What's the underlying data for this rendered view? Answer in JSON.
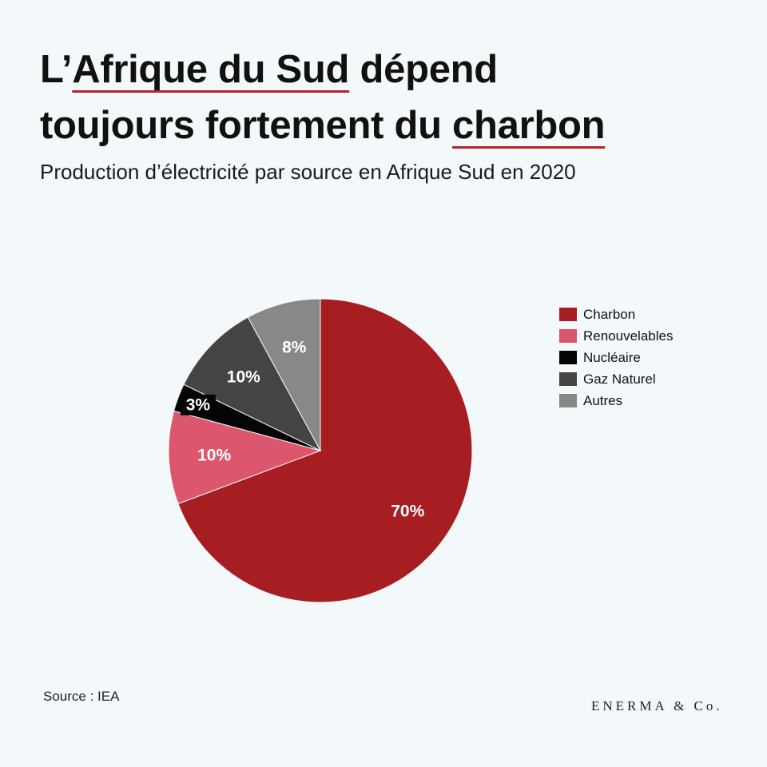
{
  "title": {
    "part1": "L’",
    "part2": "Afrique du Sud",
    "part3": " dépend",
    "part4": "toujours fortement du ",
    "part5": "charbon"
  },
  "subtitle": "Production d’électricité par source en Afrique Sud en 2020",
  "source": "Source : IEA",
  "brand": "ENERMA & Co.",
  "chart_data": {
    "type": "pie",
    "title": "L’Afrique du Sud dépend toujours fortement du charbon",
    "subtitle": "Production d’électricité par source en Afrique Sud en 2020",
    "legend_position": "right",
    "slices": [
      {
        "name": "Charbon",
        "value": 70,
        "label": "70%",
        "color": "#a61e22"
      },
      {
        "name": "Renouvelables",
        "value": 10,
        "label": "10%",
        "color": "#dc566d"
      },
      {
        "name": "Nucléaire",
        "value": 3,
        "label": "3%",
        "color": "#050505"
      },
      {
        "name": "Gaz Naturel",
        "value": 10,
        "label": "10%",
        "color": "#444444"
      },
      {
        "name": "Autres",
        "value": 8,
        "label": "8%",
        "color": "#888888"
      }
    ]
  }
}
